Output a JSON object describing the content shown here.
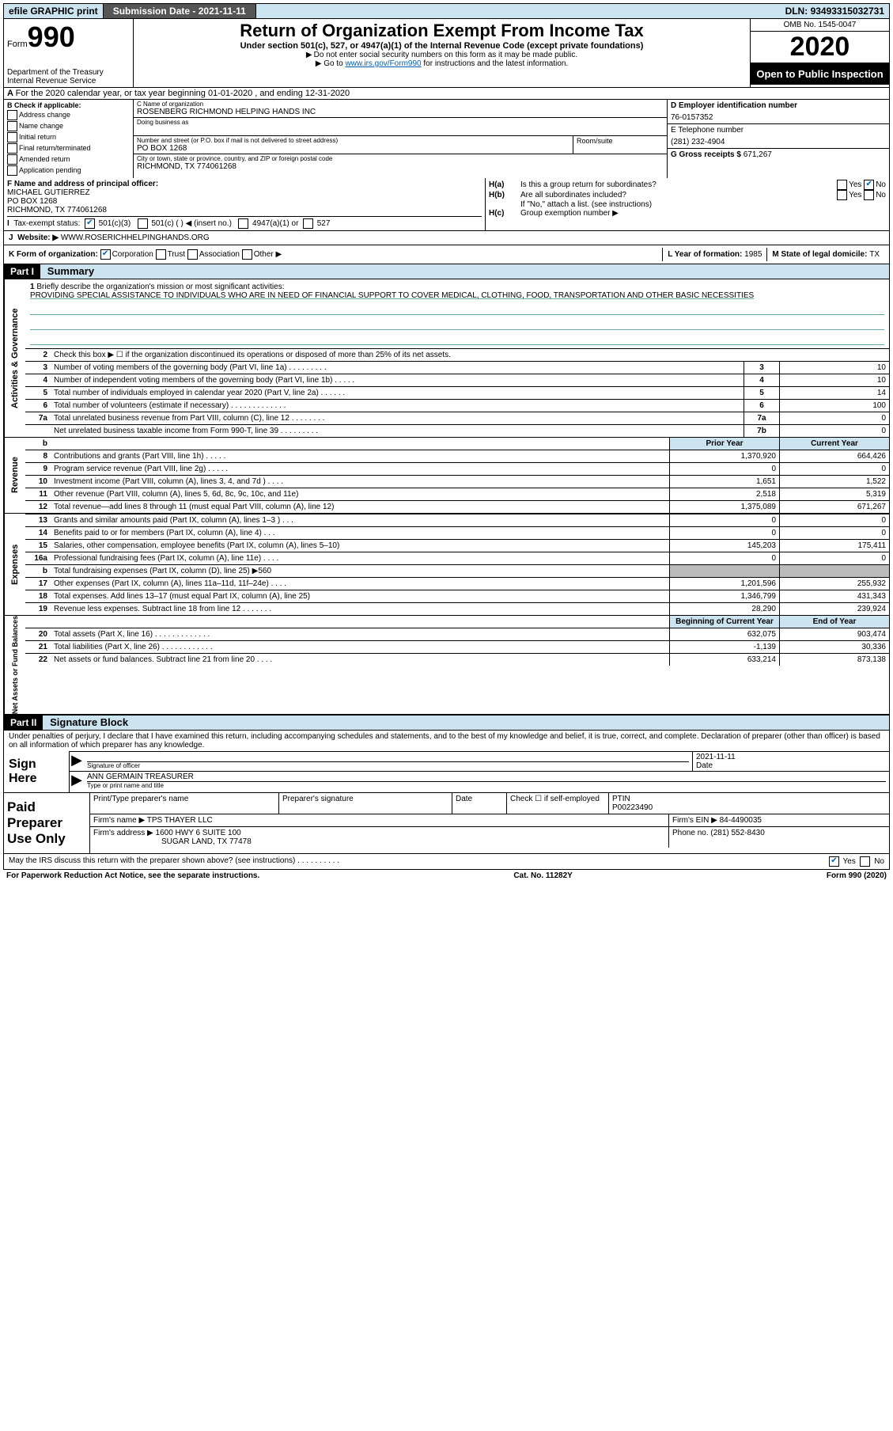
{
  "top": {
    "efile": "efile GRAPHIC print",
    "subdate_lbl": "Submission Date - ",
    "subdate": "2021-11-11",
    "dln_lbl": "DLN: ",
    "dln": "93493315032731"
  },
  "hdr": {
    "form_lbl": "Form",
    "form_num": "990",
    "dept1": "Department of the Treasury",
    "dept2": "Internal Revenue Service",
    "title": "Return of Organization Exempt From Income Tax",
    "sub1": "Under section 501(c), 527, or 4947(a)(1) of the Internal Revenue Code (except private foundations)",
    "sub2": "Do not enter social security numbers on this form as it may be made public.",
    "sub3a": "Go to ",
    "sub3_link": "www.irs.gov/Form990",
    "sub3b": " for instructions and the latest information.",
    "omb": "OMB No. 1545-0047",
    "year": "2020",
    "inspect": "Open to Public Inspection"
  },
  "A": "For the 2020 calendar year, or tax year beginning 01-01-2020    , and ending 12-31-2020",
  "B": {
    "hdr": "B Check if applicable:",
    "addr": "Address change",
    "name": "Name change",
    "init": "Initial return",
    "final": "Final return/terminated",
    "amend": "Amended return",
    "app": "Application pending"
  },
  "C": {
    "name_lbl": "C Name of organization",
    "name": "ROSENBERG RICHMOND HELPING HANDS INC",
    "dba_lbl": "Doing business as",
    "street_lbl": "Number and street (or P.O. box if mail is not delivered to street address)",
    "street": "PO BOX 1268",
    "suite_lbl": "Room/suite",
    "city_lbl": "City or town, state or province, country, and ZIP or foreign postal code",
    "city": "RICHMOND, TX  774061268"
  },
  "D": {
    "lbl": "D Employer identification number",
    "val": "76-0157352"
  },
  "E": {
    "lbl": "E Telephone number",
    "val": "(281) 232-4904"
  },
  "G": {
    "lbl": "G Gross receipts $ ",
    "val": "671,267"
  },
  "F": {
    "lbl": "F  Name and address of principal officer:",
    "name": "MICHAEL GUTIERREZ",
    "addr1": "PO BOX 1268",
    "addr2": "RICHMOND, TX  774061268"
  },
  "H": {
    "a_lbl": "H(a)",
    "a_txt": "Is this a group return for subordinates?",
    "b_lbl": "H(b)",
    "b_txt": "Are all subordinates included?",
    "b_note": "If \"No,\" attach a list. (see instructions)",
    "c_lbl": "H(c)",
    "c_txt": "Group exemption number ▶",
    "yes": "Yes",
    "no": "No"
  },
  "I": {
    "lbl": "Tax-exempt status:",
    "c3": "501(c)(3)",
    "c": "501(c) (  ) ◀ (insert no.)",
    "a1": "4947(a)(1) or",
    "s527": "527"
  },
  "J": {
    "lbl": "Website: ▶",
    "val": "WWW.ROSERICHHELPINGHANDS.ORG"
  },
  "K": {
    "lbl": "K Form of organization:",
    "corp": "Corporation",
    "trust": "Trust",
    "assoc": "Association",
    "other": "Other ▶"
  },
  "L": {
    "lbl": "L Year of formation: ",
    "val": "1985"
  },
  "M": {
    "lbl": "M State of legal domicile: ",
    "val": "TX"
  },
  "part1": {
    "hdr": "Part I",
    "title": "Summary"
  },
  "sec_ag": "Activities & Governance",
  "sec_rev": "Revenue",
  "sec_exp": "Expenses",
  "sec_na": "Net Assets or Fund Balances",
  "l1": {
    "num": "1",
    "lbl": "Briefly describe the organization's mission or most significant activities:",
    "val": "PROVIDING SPECIAL ASSISTANCE TO INDIVIDUALS WHO ARE IN NEED OF FINANCIAL SUPPORT TO COVER MEDICAL, CLOTHING, FOOD, TRANSPORTATION AND OTHER BASIC NECESSITIES"
  },
  "l2": {
    "num": "2",
    "txt": "Check this box ▶ ☐  if the organization discontinued its operations or disposed of more than 25% of its net assets."
  },
  "lines_ag": [
    {
      "n": "3",
      "d": "Number of voting members of the governing body (Part VI, line 1a)  .   .   .   .   .   .   .   .   .",
      "b": "3",
      "v": "10"
    },
    {
      "n": "4",
      "d": "Number of independent voting members of the governing body (Part VI, line 1b)  .   .   .   .   .",
      "b": "4",
      "v": "10"
    },
    {
      "n": "5",
      "d": "Total number of individuals employed in calendar year 2020 (Part V, line 2a)  .   .   .   .   .   .",
      "b": "5",
      "v": "14"
    },
    {
      "n": "6",
      "d": "Total number of volunteers (estimate if necessary)   .   .   .   .   .   .   .   .   .   .   .   .   .",
      "b": "6",
      "v": "100"
    },
    {
      "n": "7a",
      "d": "Total unrelated business revenue from Part VIII, column (C), line 12  .   .   .   .   .   .   .   .",
      "b": "7a",
      "v": "0"
    },
    {
      "n": "",
      "d": "Net unrelated business taxable income from Form 990-T, line 39   .   .   .   .   .   .   .   .   .",
      "b": "7b",
      "v": "0"
    }
  ],
  "col_hdrs": {
    "b": "b",
    "py": "Prior Year",
    "cy": "Current Year"
  },
  "lines_rev": [
    {
      "n": "8",
      "d": "Contributions and grants (Part VIII, line 1h)   .   .   .   .   .",
      "py": "1,370,920",
      "cy": "664,426"
    },
    {
      "n": "9",
      "d": "Program service revenue (Part VIII, line 2g)   .   .   .   .   .",
      "py": "0",
      "cy": "0"
    },
    {
      "n": "10",
      "d": "Investment income (Part VIII, column (A), lines 3, 4, and 7d )   .   .   .   .",
      "py": "1,651",
      "cy": "1,522"
    },
    {
      "n": "11",
      "d": "Other revenue (Part VIII, column (A), lines 5, 6d, 8c, 9c, 10c, and 11e)",
      "py": "2,518",
      "cy": "5,319"
    },
    {
      "n": "12",
      "d": "Total revenue—add lines 8 through 11 (must equal Part VIII, column (A), line 12)",
      "py": "1,375,089",
      "cy": "671,267"
    }
  ],
  "lines_exp": [
    {
      "n": "13",
      "d": "Grants and similar amounts paid (Part IX, column (A), lines 1–3 )   .   .   .",
      "py": "0",
      "cy": "0"
    },
    {
      "n": "14",
      "d": "Benefits paid to or for members (Part IX, column (A), line 4)   .   .   .",
      "py": "0",
      "cy": "0"
    },
    {
      "n": "15",
      "d": "Salaries, other compensation, employee benefits (Part IX, column (A), lines 5–10)",
      "py": "145,203",
      "cy": "175,411"
    },
    {
      "n": "16a",
      "d": "Professional fundraising fees (Part IX, column (A), line 11e)   .   .   .   .",
      "py": "0",
      "cy": "0"
    },
    {
      "n": "b",
      "d": "Total fundraising expenses (Part IX, column (D), line 25) ▶560",
      "py": "",
      "cy": "",
      "shade": true
    },
    {
      "n": "17",
      "d": "Other expenses (Part IX, column (A), lines 11a–11d, 11f–24e)   .   .   .   .",
      "py": "1,201,596",
      "cy": "255,932"
    },
    {
      "n": "18",
      "d": "Total expenses. Add lines 13–17 (must equal Part IX, column (A), line 25)",
      "py": "1,346,799",
      "cy": "431,343"
    },
    {
      "n": "19",
      "d": "Revenue less expenses. Subtract line 18 from line 12 .   .   .   .   .   .   .",
      "py": "28,290",
      "cy": "239,924"
    }
  ],
  "na_hdrs": {
    "bcy": "Beginning of Current Year",
    "eoy": "End of Year"
  },
  "lines_na": [
    {
      "n": "20",
      "d": "Total assets (Part X, line 16)  .   .   .   .   .   .   .   .   .   .   .   .   .",
      "py": "632,075",
      "cy": "903,474"
    },
    {
      "n": "21",
      "d": "Total liabilities (Part X, line 26)  .   .   .   .   .   .   .   .   .   .   .   .",
      "py": "-1,139",
      "cy": "30,336"
    },
    {
      "n": "22",
      "d": "Net assets or fund balances. Subtract line 21 from line 20   .   .   .   .",
      "py": "633,214",
      "cy": "873,138"
    }
  ],
  "part2": {
    "hdr": "Part II",
    "title": "Signature Block"
  },
  "sig": {
    "decl": "Under penalties of perjury, I declare that I have examined this return, including accompanying schedules and statements, and to the best of my knowledge and belief, it is true, correct, and complete. Declaration of preparer (other than officer) is based on all information of which preparer has any knowledge.",
    "sign_here": "Sign Here",
    "sig_of_officer": "Signature of officer",
    "date_lbl": "Date",
    "date": "2021-11-11",
    "name": "ANN GERMAIN  TREASURER",
    "type_lbl": "Type or print name and title"
  },
  "prep": {
    "lbl": "Paid Preparer Use Only",
    "pt_name_lbl": "Print/Type preparer's name",
    "pt_sig_lbl": "Preparer's signature",
    "pt_date_lbl": "Date",
    "check_lbl": "Check ☐ if self-employed",
    "ptin_lbl": "PTIN",
    "ptin": "P00223490",
    "firm_name_lbl": "Firm's name   ▶ ",
    "firm_name": "TPS THAYER LLC",
    "firm_ein_lbl": "Firm's EIN ▶ ",
    "firm_ein": "84-4490035",
    "firm_addr_lbl": "Firm's address ▶ ",
    "firm_addr1": "1600 HWY 6 SUITE 100",
    "firm_addr2": "SUGAR LAND, TX  77478",
    "phone_lbl": "Phone no. ",
    "phone": "(281) 552-8430"
  },
  "discuss": {
    "txt": "May the IRS discuss this return with the preparer shown above? (see instructions)  .   .   .   .   .   .   .   .   .   .",
    "yes": "Yes",
    "no": "No"
  },
  "footer": {
    "pra": "For Paperwork Reduction Act Notice, see the separate instructions.",
    "cat": "Cat. No. 11282Y",
    "form": "Form 990 (2020)"
  }
}
